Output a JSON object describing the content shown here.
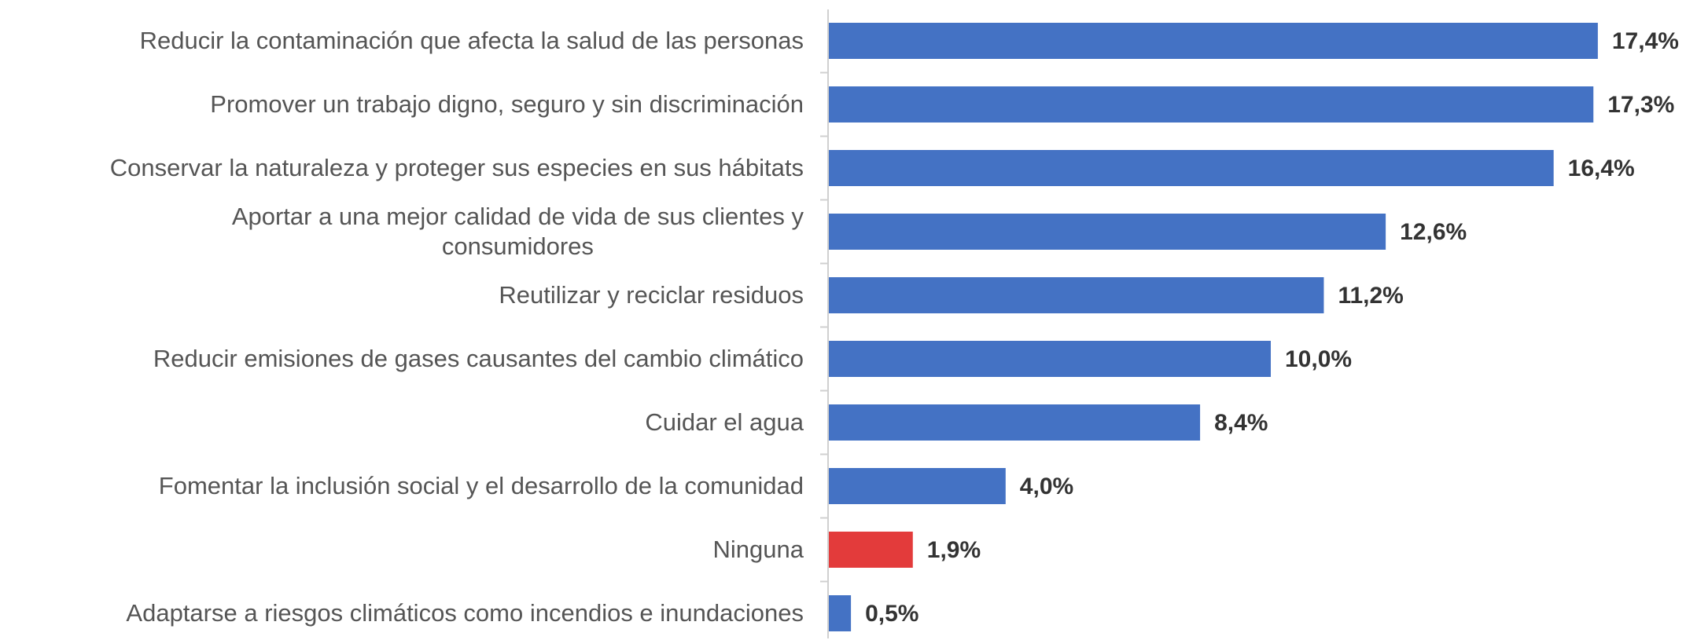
{
  "chart_data": {
    "type": "bar",
    "orientation": "horizontal",
    "categories": [
      "Reducir la contaminación que afecta la salud de las personas",
      "Promover un trabajo digno, seguro y sin discriminación",
      "Conservar la naturaleza y proteger sus especies en sus hábitats",
      "Aportar a una mejor calidad de vida de sus clientes y\nconsumidores",
      "Reutilizar y reciclar residuos",
      "Reducir emisiones de gases causantes del cambio climático",
      "Cuidar el agua",
      "Fomentar la inclusión social y el desarrollo de la comunidad",
      "Ninguna",
      "Adaptarse a riesgos climáticos como incendios e inundaciones"
    ],
    "values": [
      17.4,
      17.3,
      16.4,
      12.6,
      11.2,
      10.0,
      8.4,
      4.0,
      1.9,
      0.5
    ],
    "value_labels": [
      "17,4%",
      "17,3%",
      "16,4%",
      "12,6%",
      "11,2%",
      "10,0%",
      "8,4%",
      "4,0%",
      "1,9%",
      "0,5%"
    ],
    "colors": [
      "#4472c4",
      "#4472c4",
      "#4472c4",
      "#4472c4",
      "#4472c4",
      "#4472c4",
      "#4472c4",
      "#4472c4",
      "#e33b3b",
      "#4472c4"
    ]
  }
}
